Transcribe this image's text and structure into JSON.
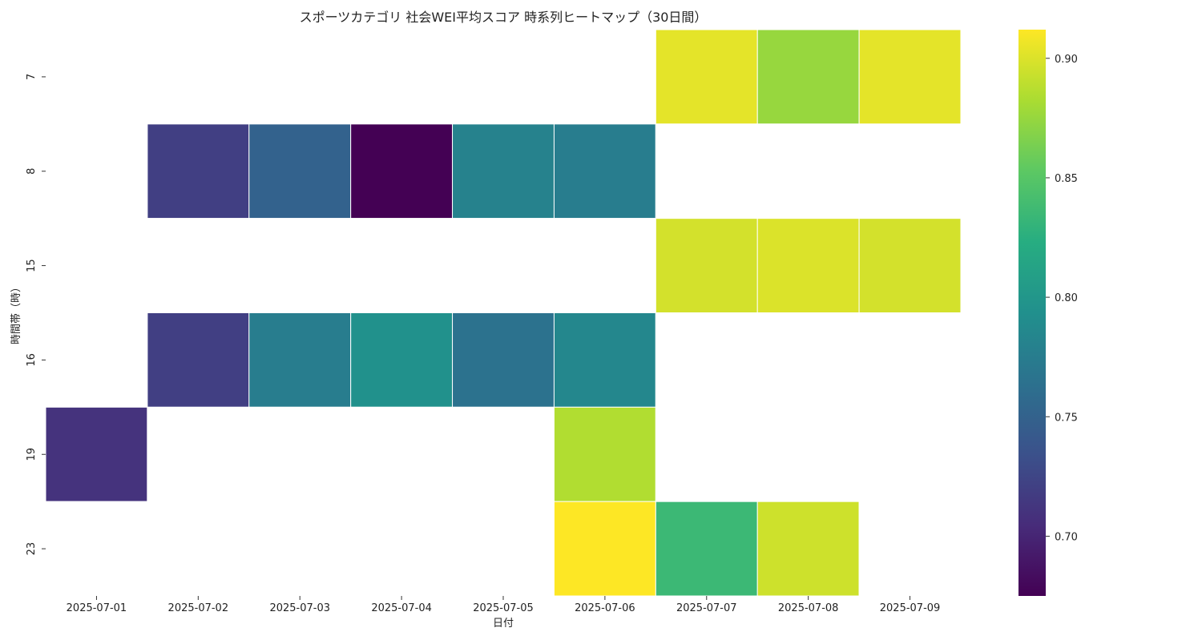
{
  "chart_data": {
    "type": "heatmap",
    "title": "スポーツカテゴリ 社会WEI平均スコア 時系列ヒートマップ（30日間）",
    "xlabel": "日付",
    "ylabel": "時間帯（時）",
    "x_categories": [
      "2025-07-01",
      "2025-07-02",
      "2025-07-03",
      "2025-07-04",
      "2025-07-05",
      "2025-07-06",
      "2025-07-07",
      "2025-07-08",
      "2025-07-09"
    ],
    "y_categories": [
      "7",
      "8",
      "15",
      "16",
      "19",
      "23"
    ],
    "values": [
      [
        null,
        null,
        null,
        null,
        null,
        null,
        0.903,
        0.875,
        0.903
      ],
      [
        null,
        0.72,
        0.75,
        0.675,
        0.78,
        0.775,
        null,
        null,
        null
      ],
      [
        null,
        null,
        null,
        null,
        null,
        null,
        0.897,
        0.9,
        0.897
      ],
      [
        null,
        0.72,
        0.775,
        0.795,
        0.765,
        0.785,
        null,
        null,
        null
      ],
      [
        0.71,
        null,
        null,
        null,
        null,
        0.885,
        null,
        null,
        null
      ],
      [
        null,
        null,
        null,
        null,
        null,
        0.912,
        0.835,
        0.895,
        null
      ]
    ],
    "colormap": "viridis",
    "vmin": 0.675,
    "vmax": 0.912,
    "colorbar_ticks": [
      "0.70",
      "0.75",
      "0.80",
      "0.85",
      "0.90"
    ],
    "colorbar_tick_values": [
      0.7,
      0.75,
      0.8,
      0.85,
      0.9
    ],
    "missing_color": "#ffffff",
    "cell_border_color": "#ffffff"
  }
}
